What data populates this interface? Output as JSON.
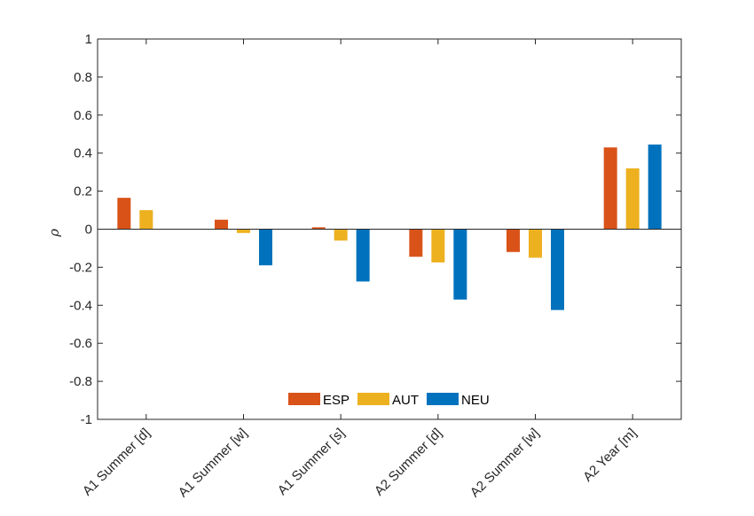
{
  "chart_data": {
    "type": "bar",
    "categories": [
      "A1 Summer [d]",
      "A1 Summer [w]",
      "A1 Summer [s]",
      "A2 Summer [d]",
      "A2 Summer [w]",
      "A2 Year [m]"
    ],
    "series": [
      {
        "name": "ESP",
        "color": "#D95319",
        "values": [
          0.165,
          0.05,
          0.01,
          -0.145,
          -0.12,
          0.43
        ]
      },
      {
        "name": "AUT",
        "color": "#EDB120",
        "values": [
          0.1,
          -0.02,
          -0.06,
          -0.175,
          -0.15,
          0.32
        ]
      },
      {
        "name": "NEU",
        "color": "#0072BD",
        "values": [
          0.0,
          -0.19,
          -0.275,
          -0.37,
          -0.425,
          0.445
        ]
      }
    ],
    "ylabel": "ρ",
    "ylim": [
      -1,
      1
    ],
    "yticks": [
      "1",
      "0.8",
      "0.6",
      "0.4",
      "0.2",
      "0",
      "-0.2",
      "-0.4",
      "-0.6",
      "-0.8",
      "-1"
    ],
    "legend_placement": "bottom-center",
    "grid": false
  }
}
